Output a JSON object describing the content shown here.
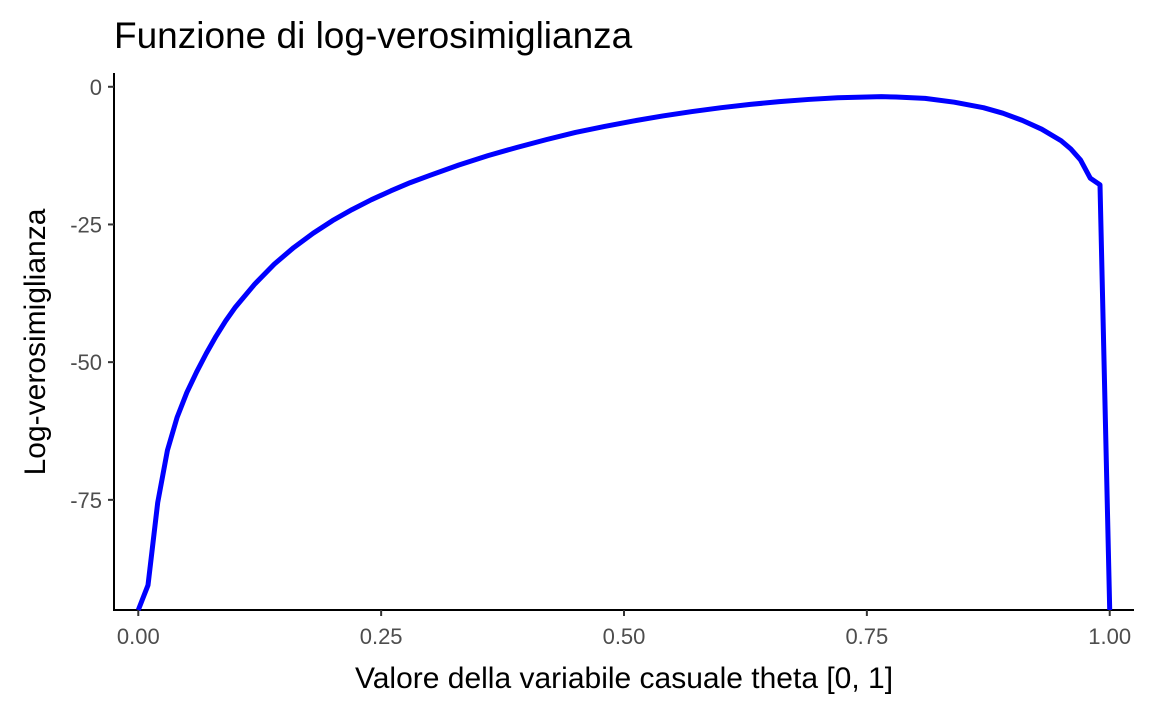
{
  "chart_data": {
    "type": "line",
    "title": "Funzione di log-verosimiglianza",
    "xlabel": "Valore della variabile casuale theta [0, 1]",
    "ylabel": "Log-verosimiglianza",
    "xlim": [
      -0.025,
      1.025
    ],
    "ylim": [
      -95,
      2.5
    ],
    "x_ticks": [
      0,
      0.25,
      0.5,
      0.75,
      1
    ],
    "x_tick_labels": [
      "0.00",
      "0.25",
      "0.50",
      "0.75",
      "1.00"
    ],
    "y_ticks": [
      0,
      -25,
      -50,
      -75
    ],
    "y_tick_labels": [
      "0",
      "-25",
      "-50",
      "-75"
    ],
    "grid": false,
    "legend": "none",
    "series": [
      {
        "color": "#0000ff",
        "x": [
          0,
          0.01,
          0.02,
          0.03,
          0.04,
          0.05,
          0.06,
          0.07,
          0.08,
          0.09,
          0.1,
          0.12,
          0.14,
          0.16,
          0.18,
          0.2,
          0.22,
          0.24,
          0.26,
          0.28,
          0.3,
          0.33,
          0.36,
          0.39,
          0.42,
          0.45,
          0.48,
          0.51,
          0.54,
          0.57,
          0.6,
          0.63,
          0.66,
          0.69,
          0.72,
          0.75,
          0.765,
          0.78,
          0.81,
          0.84,
          0.87,
          0.89,
          0.91,
          0.93,
          0.95,
          0.96,
          0.97,
          0.98,
          0.99,
          1.0
        ],
        "y": [
          -95,
          -90.5,
          -75.5,
          -66,
          -60,
          -55.5,
          -51.8,
          -48.4,
          -45.3,
          -42.5,
          -40,
          -35.8,
          -32.2,
          -29.2,
          -26.6,
          -24.3,
          -22.3,
          -20.5,
          -18.9,
          -17.4,
          -16.1,
          -14.2,
          -12.5,
          -11,
          -9.6,
          -8.3,
          -7.2,
          -6.2,
          -5.3,
          -4.5,
          -3.8,
          -3.2,
          -2.7,
          -2.3,
          -2,
          -1.85,
          -1.8,
          -1.85,
          -2.1,
          -2.8,
          -3.8,
          -4.8,
          -6.1,
          -7.7,
          -9.8,
          -11.3,
          -13.3,
          -16.6,
          -17.8,
          -95
        ]
      }
    ]
  }
}
